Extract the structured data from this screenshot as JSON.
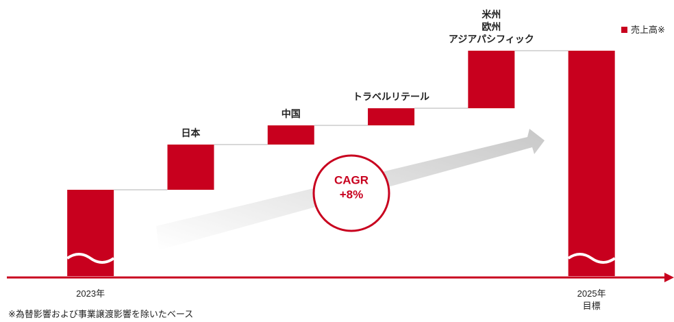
{
  "chart_data": {
    "type": "waterfall",
    "categories": [
      "2023年",
      "日本",
      "中国",
      "トラベルリテール",
      "米州\n欧州\nアジアパシフィック",
      "2025年\n目標"
    ],
    "measures": [
      "total",
      "relative",
      "relative",
      "relative",
      "relative",
      "total"
    ],
    "series": [
      {
        "name": "売上高※",
        "color": "#c8001e",
        "values": [
          123,
          66,
          28,
          25,
          84,
          326
        ]
      }
    ],
    "ylim": [
      0,
      330
    ],
    "annotation": "CAGR\n+8%",
    "note": "※為替影響および事業譲渡影響を除いたベース",
    "legend": "top-right"
  }
}
